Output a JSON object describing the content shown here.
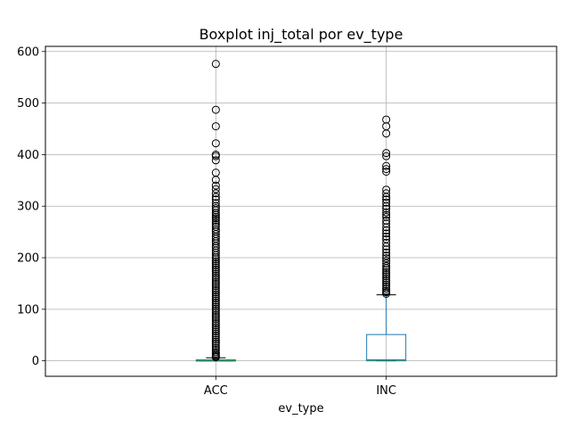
{
  "chart_data": {
    "type": "boxplot",
    "title": "Boxplot inj_total por ev_type",
    "xlabel": "ev_type",
    "ylabel": "",
    "ylim": [
      -30,
      610
    ],
    "yticks": [
      0,
      100,
      200,
      300,
      400,
      500,
      600
    ],
    "grid": true,
    "colors": {
      "box": "#1f77b4",
      "median": "#2ca02c",
      "flier": "#000000",
      "grid": "#b0b0b0"
    },
    "categories": [
      "ACC",
      "INC"
    ],
    "series": [
      {
        "category": "ACC",
        "whisker_low": 0,
        "q1": 0,
        "median": 1,
        "q3": 2,
        "whisker_high": 6,
        "fliers": [
          576,
          487,
          455,
          422,
          400,
          397,
          389,
          365,
          351,
          340,
          333,
          325,
          318,
          313,
          306,
          300,
          296,
          292,
          287,
          283,
          279,
          276,
          272,
          268,
          264,
          260,
          255,
          251,
          246,
          241,
          237,
          232,
          228,
          223,
          219,
          214,
          210,
          205,
          201,
          197,
          193,
          189,
          185,
          181,
          177,
          173,
          169,
          165,
          161,
          157,
          153,
          149,
          145,
          141,
          137,
          133,
          129,
          125,
          121,
          117,
          113,
          109,
          105,
          101,
          97,
          93,
          89,
          85,
          81,
          77,
          73,
          69,
          65,
          61,
          57,
          53,
          49,
          45,
          41,
          37,
          33,
          29,
          25,
          21,
          17,
          14,
          11,
          9,
          7
        ]
      },
      {
        "category": "INC",
        "whisker_low": 0,
        "q1": 0,
        "median": 2,
        "q3": 51,
        "whisker_high": 128,
        "fliers": [
          468,
          455,
          441,
          403,
          397,
          378,
          372,
          367,
          332,
          325,
          318,
          313,
          307,
          300,
          295,
          288,
          283,
          279,
          272,
          266,
          259,
          253,
          247,
          241,
          236,
          229,
          222,
          216,
          210,
          204,
          199,
          194,
          189,
          184,
          180,
          176,
          172,
          168,
          164,
          160,
          156,
          152,
          148,
          144,
          140,
          136,
          133,
          130
        ]
      }
    ]
  }
}
